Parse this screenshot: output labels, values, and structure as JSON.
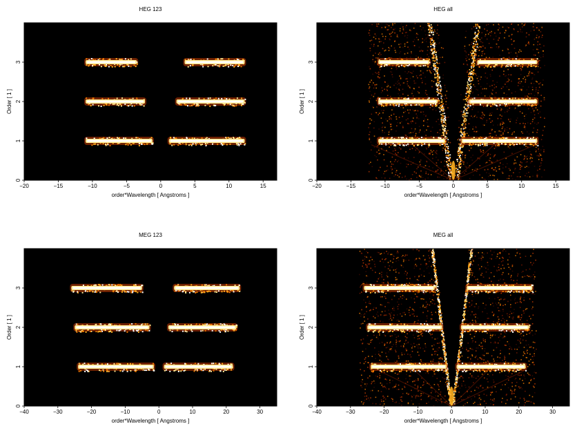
{
  "figure": {
    "background": "#ffffff",
    "plot_background": "#000000",
    "colormap": [
      "#3a0a00",
      "#7a1a00",
      "#c83c00",
      "#f07a00",
      "#ffb020",
      "#ffe890",
      "#ffffff"
    ]
  },
  "chart_data": [
    {
      "type": "heatmap",
      "title": "HEG 123",
      "xlabel": "order*Wavelength [ Angstroms ]",
      "ylabel": "Order [ 1 ]",
      "xlim": [
        -20,
        17
      ],
      "ylim": [
        0,
        4
      ],
      "xticks": [
        -20,
        -15,
        -10,
        -5,
        0,
        5,
        10,
        15
      ],
      "yticks": [
        0,
        1,
        2,
        3
      ],
      "bands": [
        {
          "order": 1,
          "segments": [
            [
              -11,
              -1.2
            ],
            [
              1.2,
              12.3
            ]
          ]
        },
        {
          "order": 2,
          "segments": [
            [
              -11,
              -2.3
            ],
            [
              2.3,
              12.3
            ]
          ]
        },
        {
          "order": 3,
          "segments": [
            [
              -11,
              -3.5
            ],
            [
              3.5,
              12.3
            ]
          ]
        }
      ],
      "background_noise": false
    },
    {
      "type": "heatmap",
      "title": "HEG all",
      "xlabel": "order*Wavelength [ Angstroms ]",
      "ylabel": "Order [ 1 ]",
      "xlim": [
        -20,
        17
      ],
      "ylim": [
        0,
        4
      ],
      "xticks": [
        -20,
        -15,
        -10,
        -5,
        0,
        5,
        10,
        15
      ],
      "yticks": [
        0,
        1,
        2,
        3
      ],
      "bands": [
        {
          "order": 1,
          "segments": [
            [
              -11,
              -1.2
            ],
            [
              1.2,
              12.3
            ]
          ]
        },
        {
          "order": 2,
          "segments": [
            [
              -11,
              -2.3
            ],
            [
              2.3,
              12.3
            ]
          ]
        },
        {
          "order": 3,
          "segments": [
            [
              -11,
              -3.5
            ],
            [
              3.5,
              12.3
            ]
          ]
        }
      ],
      "background_noise": true
    },
    {
      "type": "heatmap",
      "title": "MEG 123",
      "xlabel": "order*Wavelength [ Angstroms ]",
      "ylabel": "Order [ 1 ]",
      "xlim": [
        -40,
        35
      ],
      "ylim": [
        0,
        4
      ],
      "xticks": [
        -40,
        -30,
        -20,
        -10,
        0,
        10,
        20,
        30
      ],
      "yticks": [
        0,
        1,
        2,
        3
      ],
      "bands": [
        {
          "order": 1,
          "segments": [
            [
              -24,
              -1.5
            ],
            [
              1.5,
              22
            ]
          ]
        },
        {
          "order": 2,
          "segments": [
            [
              -25,
              -2.8
            ],
            [
              2.8,
              23
            ]
          ]
        },
        {
          "order": 3,
          "segments": [
            [
              -26,
              -5
            ],
            [
              4.5,
              24
            ]
          ]
        }
      ],
      "background_noise": false
    },
    {
      "type": "heatmap",
      "title": "MEG all",
      "xlabel": "order*Wavelength [ Angstroms ]",
      "ylabel": "Order [ 1 ]",
      "xlim": [
        -40,
        35
      ],
      "ylim": [
        0,
        4
      ],
      "xticks": [
        -40,
        -30,
        -20,
        -10,
        0,
        10,
        20,
        30
      ],
      "yticks": [
        0,
        1,
        2,
        3
      ],
      "bands": [
        {
          "order": 1,
          "segments": [
            [
              -24,
              -1.5
            ],
            [
              1.5,
              22
            ]
          ]
        },
        {
          "order": 2,
          "segments": [
            [
              -25,
              -2.8
            ],
            [
              2.8,
              23
            ]
          ]
        },
        {
          "order": 3,
          "segments": [
            [
              -26,
              -5
            ],
            [
              4.5,
              24
            ]
          ]
        }
      ],
      "background_noise": true
    }
  ]
}
